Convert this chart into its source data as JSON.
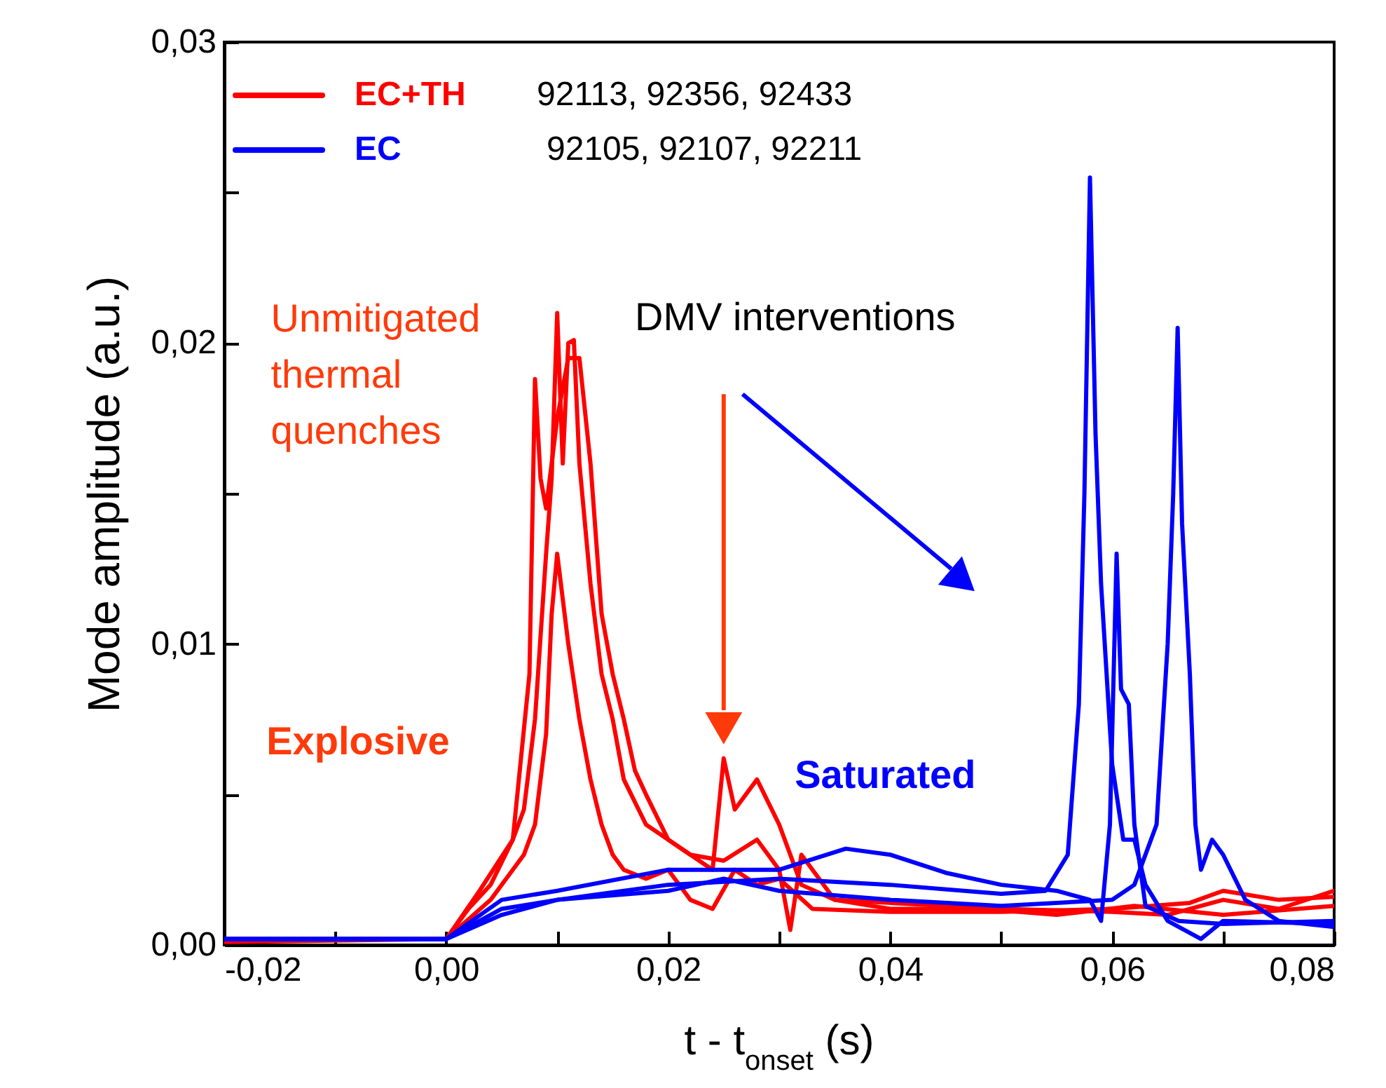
{
  "chart_data": {
    "type": "line",
    "xlabel": "t - t$_{onset}$ (s)",
    "ylabel": "Mode amplitude (a.u.)",
    "xlim": [
      -0.02,
      0.08
    ],
    "ylim": [
      0,
      0.03
    ],
    "xticks": [
      {
        "value": -0.02,
        "label": "-0,02"
      },
      {
        "value": -0.01,
        "label": null
      },
      {
        "value": 0,
        "label": "0,00"
      },
      {
        "value": 0.01,
        "label": null
      },
      {
        "value": 0.02,
        "label": "0,02"
      },
      {
        "value": 0.03,
        "label": null
      },
      {
        "value": 0.04,
        "label": "0,04"
      },
      {
        "value": 0.05,
        "label": null
      },
      {
        "value": 0.06,
        "label": "0,06"
      },
      {
        "value": 0.07,
        "label": null
      },
      {
        "value": 0.08,
        "label": "0,08"
      }
    ],
    "yticks": [
      {
        "value": 0,
        "label": "0,00"
      },
      {
        "value": 0.005,
        "label": null
      },
      {
        "value": 0.01,
        "label": "0,01"
      },
      {
        "value": 0.015,
        "label": null
      },
      {
        "value": 0.02,
        "label": "0,02"
      },
      {
        "value": 0.025,
        "label": null
      },
      {
        "value": 0.03,
        "label": "0,03"
      }
    ],
    "legend": "top left",
    "line_style": "solid",
    "series": [
      {
        "name": "EC+TH",
        "color": "#ff0000",
        "x": [
          -0.02,
          -0.01,
          0,
          0.002,
          0.004,
          0.006,
          0.007,
          0.008,
          0.009,
          0.0095,
          0.01,
          0.0105,
          0.011,
          0.0115,
          0.012,
          0.013,
          0.014,
          0.015,
          0.016,
          0.018,
          0.02,
          0.022,
          0.024,
          0.025,
          0.026,
          0.027,
          0.028,
          0.03,
          0.032,
          0.035,
          0.04,
          0.05,
          0.06,
          0.065,
          0.07,
          0.075,
          0.08
        ],
        "values": [
          0.0002,
          0.0002,
          0.0002,
          0.0012,
          0.002,
          0.0035,
          0.0045,
          0.0075,
          0.013,
          0.0155,
          0.021,
          0.016,
          0.02,
          0.0201,
          0.016,
          0.012,
          0.009,
          0.0075,
          0.0055,
          0.004,
          0.0035,
          0.003,
          0.0025,
          0.0062,
          0.0045,
          0.005,
          0.0055,
          0.004,
          0.002,
          0.0015,
          0.0012,
          0.0012,
          0.0011,
          0.001,
          0.0015,
          0.0012,
          0.0018
        ]
      },
      {
        "color": "#ff0000",
        "x": [
          -0.02,
          0,
          0.003,
          0.006,
          0.0075,
          0.008,
          0.0085,
          0.009,
          0.0095,
          0.01,
          0.011,
          0.012,
          0.013,
          0.014,
          0.015,
          0.016,
          0.017,
          0.018,
          0.02,
          0.022,
          0.025,
          0.028,
          0.03,
          0.031,
          0.032,
          0.035,
          0.045,
          0.055,
          0.062,
          0.07,
          0.08
        ],
        "values": [
          0.0001,
          0.0002,
          0.0018,
          0.0035,
          0.009,
          0.0188,
          0.0155,
          0.0145,
          0.016,
          0.0175,
          0.0195,
          0.0195,
          0.016,
          0.011,
          0.009,
          0.0075,
          0.0058,
          0.005,
          0.0035,
          0.003,
          0.0028,
          0.0035,
          0.0025,
          0.0005,
          0.003,
          0.0015,
          0.0013,
          0.001,
          0.0013,
          0.001,
          0.0013
        ]
      },
      {
        "color": "#ff0000",
        "x": [
          -0.02,
          0,
          0.004,
          0.007,
          0.008,
          0.009,
          0.0095,
          0.01,
          0.0105,
          0.011,
          0.012,
          0.013,
          0.014,
          0.015,
          0.016,
          0.018,
          0.02,
          0.022,
          0.024,
          0.026,
          0.028,
          0.03,
          0.033,
          0.04,
          0.05,
          0.06,
          0.067,
          0.07,
          0.075,
          0.08
        ],
        "values": [
          0.0002,
          0.0002,
          0.0015,
          0.003,
          0.004,
          0.007,
          0.011,
          0.013,
          0.0115,
          0.01,
          0.0075,
          0.0055,
          0.004,
          0.003,
          0.0025,
          0.0022,
          0.0025,
          0.0015,
          0.0012,
          0.0025,
          0.002,
          0.0022,
          0.0012,
          0.0011,
          0.0011,
          0.0012,
          0.0014,
          0.0018,
          0.0015,
          0.0016
        ]
      },
      {
        "name": "EC",
        "color": "#0000ff",
        "x": [
          -0.02,
          0,
          0.005,
          0.01,
          0.02,
          0.03,
          0.04,
          0.05,
          0.054,
          0.056,
          0.057,
          0.0575,
          0.058,
          0.0585,
          0.059,
          0.06,
          0.061,
          0.062,
          0.063,
          0.065,
          0.068,
          0.07,
          0.08
        ],
        "values": [
          0.0002,
          0.0002,
          0.0012,
          0.0015,
          0.002,
          0.0022,
          0.002,
          0.0017,
          0.0018,
          0.003,
          0.008,
          0.015,
          0.0255,
          0.017,
          0.012,
          0.006,
          0.0035,
          0.0035,
          0.002,
          0.0008,
          0.0002,
          0.0008,
          0.0007
        ]
      },
      {
        "color": "#0000ff",
        "x": [
          -0.02,
          0,
          0.005,
          0.01,
          0.02,
          0.03,
          0.036,
          0.04,
          0.045,
          0.05,
          0.055,
          0.058,
          0.059,
          0.0598,
          0.0604,
          0.0608,
          0.0615,
          0.062,
          0.063,
          0.066,
          0.07,
          0.08
        ],
        "values": [
          0.0002,
          0.0002,
          0.0015,
          0.0018,
          0.0025,
          0.0025,
          0.0032,
          0.003,
          0.0024,
          0.002,
          0.0018,
          0.0015,
          0.0008,
          0.004,
          0.013,
          0.0085,
          0.008,
          0.004,
          0.0013,
          0.0008,
          0.0007,
          0.0008
        ]
      },
      {
        "color": "#0000ff",
        "x": [
          -0.02,
          0,
          0.005,
          0.01,
          0.02,
          0.025,
          0.03,
          0.04,
          0.05,
          0.06,
          0.062,
          0.064,
          0.065,
          0.0655,
          0.0659,
          0.0663,
          0.067,
          0.0675,
          0.068,
          0.069,
          0.07,
          0.072,
          0.075,
          0.08
        ],
        "values": [
          0.0002,
          0.0002,
          0.001,
          0.0015,
          0.0018,
          0.0022,
          0.0018,
          0.0015,
          0.0013,
          0.0015,
          0.002,
          0.004,
          0.01,
          0.015,
          0.0205,
          0.014,
          0.009,
          0.004,
          0.0025,
          0.0035,
          0.003,
          0.0015,
          0.0008,
          0.0006
        ]
      }
    ],
    "annotations": [
      "92113, 92356, 92433",
      "92105, 92107, 92211",
      "Unmitigated\nthermal\nquenches",
      "DMV interventions",
      "Explosive",
      "Saturated"
    ]
  }
}
